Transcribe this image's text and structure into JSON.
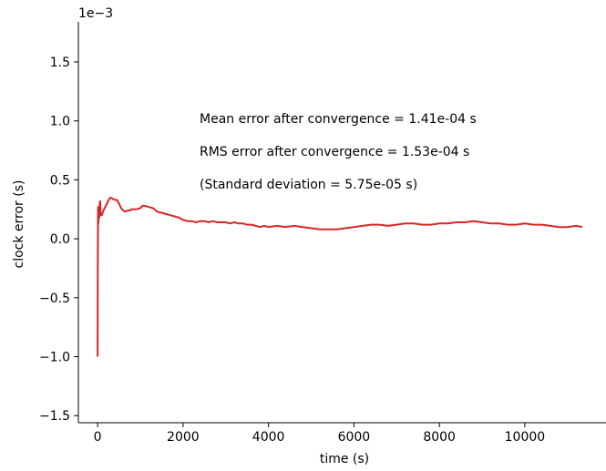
{
  "chart_data": {
    "type": "line",
    "title": "",
    "xlabel": "time (s)",
    "ylabel": "clock error (s)",
    "y_scale_label": "1e−3",
    "xlim": [
      -450,
      11900
    ],
    "ylim": [
      -1.56,
      1.84
    ],
    "x_ticks": [
      0,
      2000,
      4000,
      6000,
      8000,
      10000
    ],
    "x_tick_labels": [
      "0",
      "2000",
      "4000",
      "6000",
      "8000",
      "10000"
    ],
    "y_ticks": [
      -1.5,
      -1.0,
      -0.5,
      0.0,
      0.5,
      1.0,
      1.5
    ],
    "y_tick_labels": [
      "−1.5",
      "−1.0",
      "−0.5",
      "0.0",
      "0.5",
      "1.0",
      "1.5"
    ],
    "grid": false,
    "series": [
      {
        "color": "#d62728",
        "x": [
          0,
          5,
          10,
          20,
          30,
          40,
          50,
          60,
          70,
          80,
          100,
          120,
          150,
          180,
          220,
          260,
          300,
          350,
          400,
          450,
          500,
          550,
          600,
          650,
          700,
          750,
          800,
          900,
          1000,
          1050,
          1100,
          1200,
          1300,
          1400,
          1500,
          1600,
          1700,
          1800,
          1900,
          2000,
          2100,
          2200,
          2300,
          2400,
          2500,
          2600,
          2700,
          2800,
          2900,
          3000,
          3100,
          3200,
          3300,
          3400,
          3500,
          3600,
          3700,
          3800,
          3900,
          4000,
          4200,
          4400,
          4600,
          4800,
          5000,
          5200,
          5400,
          5600,
          5800,
          6000,
          6200,
          6400,
          6600,
          6800,
          7000,
          7200,
          7400,
          7600,
          7800,
          8000,
          8200,
          8400,
          8600,
          8800,
          9000,
          9200,
          9400,
          9600,
          9800,
          10000,
          10200,
          10400,
          10600,
          10800,
          11000,
          11200,
          11350
        ],
        "values": [
          -1.0,
          -0.3,
          0.27,
          0.13,
          0.26,
          0.18,
          0.3,
          0.32,
          0.22,
          0.2,
          0.2,
          0.22,
          0.25,
          0.27,
          0.3,
          0.33,
          0.35,
          0.34,
          0.33,
          0.33,
          0.3,
          0.26,
          0.24,
          0.23,
          0.24,
          0.24,
          0.25,
          0.25,
          0.26,
          0.28,
          0.28,
          0.27,
          0.26,
          0.23,
          0.22,
          0.21,
          0.2,
          0.19,
          0.18,
          0.16,
          0.15,
          0.15,
          0.14,
          0.15,
          0.15,
          0.14,
          0.15,
          0.14,
          0.14,
          0.14,
          0.13,
          0.14,
          0.13,
          0.13,
          0.12,
          0.12,
          0.11,
          0.1,
          0.11,
          0.1,
          0.11,
          0.1,
          0.11,
          0.1,
          0.09,
          0.08,
          0.08,
          0.08,
          0.09,
          0.1,
          0.11,
          0.12,
          0.12,
          0.11,
          0.12,
          0.13,
          0.13,
          0.12,
          0.12,
          0.13,
          0.13,
          0.14,
          0.14,
          0.15,
          0.14,
          0.13,
          0.13,
          0.12,
          0.12,
          0.13,
          0.12,
          0.12,
          0.11,
          0.1,
          0.1,
          0.11,
          0.1
        ]
      }
    ],
    "annotations": [
      "Mean error after convergence = 1.41e-04 s",
      "RMS error after convergence = 1.53e-04 s",
      "(Standard deviation = 5.75e-05 s)"
    ]
  }
}
